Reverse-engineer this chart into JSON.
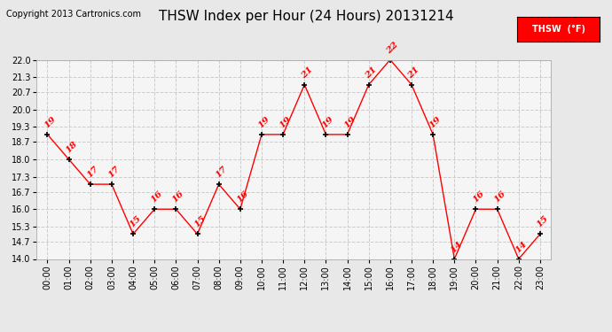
{
  "title": "THSW Index per Hour (24 Hours) 20131214",
  "copyright": "Copyright 2013 Cartronics.com",
  "legend_label": "THSW  (°F)",
  "hours": [
    0,
    1,
    2,
    3,
    4,
    5,
    6,
    7,
    8,
    9,
    10,
    11,
    12,
    13,
    14,
    15,
    16,
    17,
    18,
    19,
    20,
    21,
    22,
    23
  ],
  "values": [
    19,
    18,
    17,
    17,
    15,
    16,
    16,
    15,
    17,
    16,
    19,
    19,
    21,
    19,
    19,
    21,
    22,
    21,
    19,
    14,
    16,
    16,
    14,
    15
  ],
  "ylim_min": 14.0,
  "ylim_max": 22.0,
  "yticks": [
    14.0,
    14.7,
    15.3,
    16.0,
    16.7,
    17.3,
    18.0,
    18.7,
    19.3,
    20.0,
    20.7,
    21.3,
    22.0
  ],
  "line_color": "red",
  "marker_color": "black",
  "label_color": "red",
  "bg_color": "#e8e8e8",
  "plot_bg_color": "#f5f5f5",
  "grid_color": "#cccccc",
  "title_fontsize": 11,
  "label_fontsize": 7.5,
  "copyright_fontsize": 7,
  "tick_fontsize": 7,
  "legend_bg": "red",
  "legend_text_color": "white"
}
